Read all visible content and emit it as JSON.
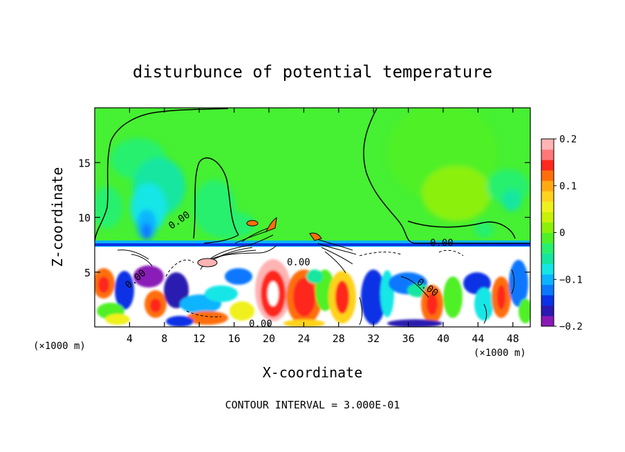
{
  "chart_data": {
    "type": "heatmap",
    "title": "disturbunce of potential temperature",
    "xlabel": "X-coordinate",
    "ylabel": "Z-coordinate",
    "x_unit_label_left": "(×1000 m)",
    "x_unit_label_right": "(×1000 m)",
    "xlim": [
      0,
      50
    ],
    "ylim": [
      0,
      20
    ],
    "x_ticks": [
      4,
      8,
      12,
      16,
      20,
      24,
      28,
      32,
      36,
      40,
      44,
      48
    ],
    "x_tick_labels": [
      "4",
      "8",
      "12",
      "16",
      "20",
      "24",
      "28",
      "32",
      "36",
      "40",
      "44",
      "48"
    ],
    "y_ticks": [
      5,
      10,
      15
    ],
    "y_tick_labels": [
      "5",
      "10",
      "15"
    ],
    "colorbar": {
      "min": -0.2,
      "max": 0.2,
      "ticks": [
        0.2,
        0.1,
        0,
        -0.1,
        -0.2
      ],
      "tick_labels": [
        "0.2",
        "0.1",
        "0",
        "−0.1",
        "−0.2"
      ],
      "colors": [
        "#8a1ab8",
        "#2a1ab0",
        "#0a32e6",
        "#0a78ff",
        "#0ab4ff",
        "#14e6e6",
        "#14e6a0",
        "#28f06e",
        "#50f028",
        "#8cf00a",
        "#c8f00a",
        "#f0f01e",
        "#ffd21e",
        "#ffaa14",
        "#ff6e0a",
        "#ff281e",
        "#ff7878",
        "#ffb4b4"
      ]
    },
    "contour_labels": [
      "0.00",
      "0.00",
      "0.00",
      "0.00",
      "0.00",
      "0.00"
    ],
    "footer": "CONTOUR INTERVAL = 3.000E-01",
    "grid": false,
    "legend": "colorbar-right"
  }
}
